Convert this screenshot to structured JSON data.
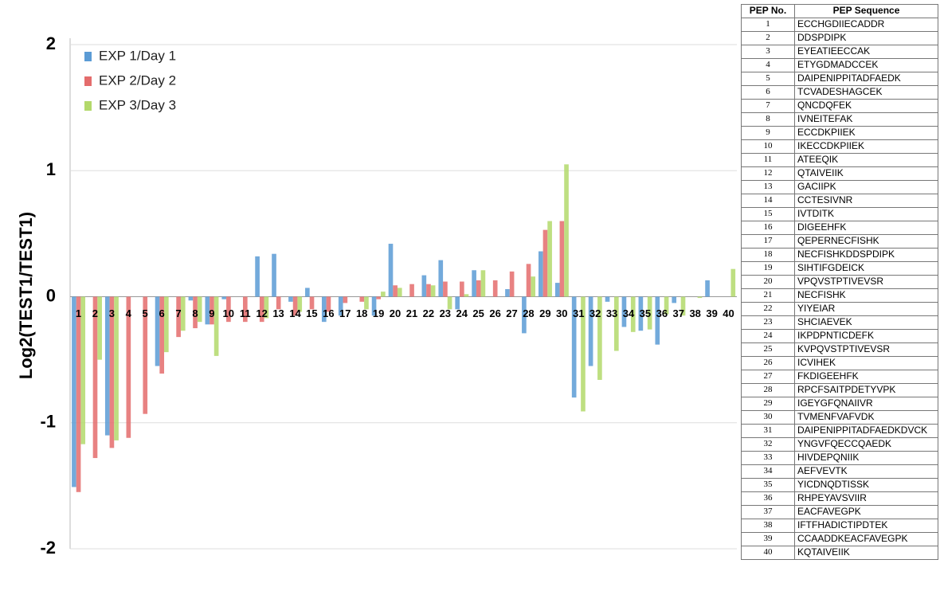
{
  "chart_data": {
    "type": "bar",
    "y_label": "Log2(TEST1/TEST1)",
    "categories": [
      "1",
      "2",
      "3",
      "4",
      "5",
      "6",
      "7",
      "8",
      "9",
      "10",
      "11",
      "12",
      "13",
      "14",
      "15",
      "16",
      "17",
      "18",
      "19",
      "20",
      "21",
      "22",
      "23",
      "24",
      "25",
      "26",
      "27",
      "28",
      "29",
      "30",
      "31",
      "32",
      "33",
      "34",
      "35",
      "36",
      "37",
      "38",
      "39",
      "40"
    ],
    "series": [
      {
        "name": "EXP 1/Day 1",
        "color": "#5b9bd5",
        "values": [
          -1.51,
          0,
          -1.1,
          0,
          0,
          -0.55,
          0,
          -0.03,
          -0.22,
          -0.02,
          0,
          0.32,
          0.34,
          -0.04,
          0.07,
          -0.2,
          -0.15,
          0,
          -0.15,
          0.42,
          0,
          0.17,
          0.29,
          -0.1,
          0.21,
          0,
          0.06,
          -0.29,
          0.36,
          0.11,
          -0.8,
          -0.55,
          -0.04,
          -0.24,
          -0.27,
          -0.38,
          -0.05,
          0,
          0.13,
          0
        ]
      },
      {
        "name": "EXP 2/Day 2",
        "color": "#e46c6c",
        "values": [
          -1.55,
          -1.28,
          -1.2,
          -1.12,
          -0.93,
          -0.61,
          -0.32,
          -0.25,
          -0.22,
          -0.2,
          -0.2,
          -0.2,
          -0.1,
          -0.15,
          -0.1,
          -0.12,
          -0.05,
          -0.04,
          -0.02,
          0.09,
          0.1,
          0.1,
          0.12,
          0.12,
          0.13,
          0.13,
          0.2,
          0.26,
          0.53,
          0.6,
          0,
          0,
          0,
          0,
          0,
          0,
          0,
          0,
          0,
          0
        ]
      },
      {
        "name": "EXP 3/Day 3",
        "color": "#b3d96b",
        "values": [
          -1.17,
          -0.5,
          -1.14,
          0,
          0,
          -0.44,
          -0.27,
          -0.2,
          -0.47,
          0,
          0,
          -0.17,
          0,
          -0.12,
          0,
          0,
          0,
          -0.1,
          0.04,
          0.07,
          0,
          0.09,
          -0.1,
          0.02,
          0.21,
          0,
          0,
          0.16,
          0.6,
          1.05,
          -0.91,
          -0.66,
          -0.43,
          -0.28,
          -0.26,
          -0.14,
          -0.15,
          -0.01,
          0,
          0.22
        ]
      }
    ],
    "ylim": [
      -2,
      2
    ],
    "yticks": [
      -2,
      -1,
      0,
      1,
      2
    ],
    "grid": true,
    "legend": "top-left"
  },
  "table": {
    "header": [
      "PEP No.",
      "PEP Sequence"
    ],
    "rows": [
      [
        "1",
        "ECCHGDIIECADDR"
      ],
      [
        "2",
        "DDSPDIPK"
      ],
      [
        "3",
        "EYEATIEECCAK"
      ],
      [
        "4",
        "ETYGDMADCCEK"
      ],
      [
        "5",
        "DAIPENIPPITADFAEDK"
      ],
      [
        "6",
        "TCVADESHAGCEK"
      ],
      [
        "7",
        "QNCDQFEK"
      ],
      [
        "8",
        "IVNEITEFAK"
      ],
      [
        "9",
        "ECCDKPIIEK"
      ],
      [
        "10",
        "IKECCDKPIIEK"
      ],
      [
        "11",
        "ATEEQIK"
      ],
      [
        "12",
        "QTAIVEIIK"
      ],
      [
        "13",
        "GACIIPK"
      ],
      [
        "14",
        "CCTESIVNR"
      ],
      [
        "15",
        "IVTDITK"
      ],
      [
        "16",
        "DIGEEHFK"
      ],
      [
        "17",
        "QEPERNECFISHK"
      ],
      [
        "18",
        "NECFISHKDDSPDIPK"
      ],
      [
        "19",
        "SIHTIFGDEICK"
      ],
      [
        "20",
        "VPQVSTPTIVEVSR"
      ],
      [
        "21",
        "NECFISHK"
      ],
      [
        "22",
        "YIYEIAR"
      ],
      [
        "23",
        "SHCIAEVEK"
      ],
      [
        "24",
        "IKPDPNTICDEFK"
      ],
      [
        "25",
        "KVPQVSTPTIVEVSR"
      ],
      [
        "26",
        "ICVIHEK"
      ],
      [
        "27",
        "FKDIGEEHFK"
      ],
      [
        "28",
        "RPCFSAITPDETYVPK"
      ],
      [
        "29",
        "IGEYGFQNAIIVR"
      ],
      [
        "30",
        "TVMENFVAFVDK"
      ],
      [
        "31",
        "DAIPENIPPITADFAEDKDVCK"
      ],
      [
        "32",
        "YNGVFQECCQAEDK"
      ],
      [
        "33",
        "HIVDEPQNIIK"
      ],
      [
        "34",
        "AEFVEVTK"
      ],
      [
        "35",
        "YICDNQDTISSK"
      ],
      [
        "36",
        "RHPEYAVSVIIR"
      ],
      [
        "37",
        "EACFAVEGPK"
      ],
      [
        "38",
        "IFTFHADICTIPDTEK"
      ],
      [
        "39",
        "CCAADDKEACFAVEGPK"
      ],
      [
        "40",
        "KQTAIVEIIK"
      ]
    ]
  }
}
